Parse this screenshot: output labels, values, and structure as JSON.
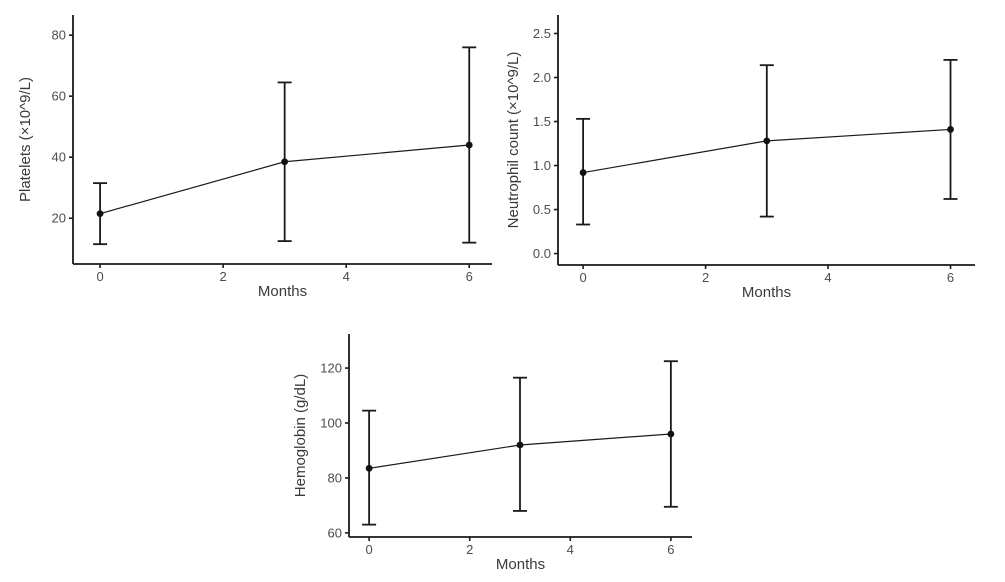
{
  "figure": {
    "background": "#ffffff",
    "axis_color": "#1a1a1a",
    "tick_label_color": "#4d4d4d",
    "axis_title_color": "#3a3a3a",
    "marker_color": "#111111",
    "line_color": "#1a1a1a"
  },
  "chart_data": [
    {
      "id": "platelets",
      "type": "line",
      "title": "",
      "xlabel": "Months",
      "ylabel": "Platelets (×10^9/L)",
      "x": [
        0,
        3,
        6
      ],
      "series": [
        {
          "name": "Platelets",
          "values": [
            21.5,
            38.5,
            44
          ],
          "error_low": [
            11.5,
            12.5,
            12
          ],
          "error_high": [
            31.5,
            64.5,
            76
          ]
        }
      ],
      "xticks": [
        0,
        2,
        4,
        6
      ],
      "xtick_labels": [
        "0",
        "2",
        "4",
        "6"
      ],
      "yticks": [
        20,
        40,
        60,
        80
      ],
      "ytick_labels": [
        "20",
        "40",
        "60",
        "80"
      ],
      "xlim": [
        -0.44,
        6.37
      ],
      "ylim": [
        5.0,
        86.6
      ],
      "grid": false,
      "legend": "none",
      "error_bars": true,
      "marker": "circle"
    },
    {
      "id": "neutrophil-count",
      "type": "line",
      "title": "",
      "xlabel": "Months",
      "ylabel": "Neutrophil count (×10^9/L)",
      "x": [
        0,
        3,
        6
      ],
      "series": [
        {
          "name": "Neutrophil count",
          "values": [
            0.92,
            1.28,
            1.41
          ],
          "error_low": [
            0.33,
            0.42,
            0.62
          ],
          "error_high": [
            1.53,
            2.14,
            2.2
          ]
        }
      ],
      "xticks": [
        0,
        2,
        4,
        6
      ],
      "xtick_labels": [
        "0",
        "2",
        "4",
        "6"
      ],
      "yticks": [
        0,
        0.5,
        1.0,
        1.5,
        2.0,
        2.5
      ],
      "ytick_labels": [
        "0.0",
        "0.5",
        "1.0",
        "1.5",
        "2.0",
        "2.5"
      ],
      "xlim": [
        -0.41,
        6.4
      ],
      "ylim": [
        -0.13,
        2.71
      ],
      "grid": false,
      "legend": "none",
      "error_bars": true,
      "marker": "circle"
    },
    {
      "id": "hemoglobin",
      "type": "line",
      "title": "",
      "xlabel": "Months",
      "ylabel": "Hemoglobin (g/dL)",
      "x": [
        0,
        3,
        6
      ],
      "series": [
        {
          "name": "Hemoglobin",
          "values": [
            83.5,
            92,
            96
          ],
          "error_low": [
            63,
            68,
            69.5
          ],
          "error_high": [
            104.5,
            116.5,
            122.5
          ]
        }
      ],
      "xticks": [
        0,
        2,
        4,
        6
      ],
      "xtick_labels": [
        "0",
        "2",
        "4",
        "6"
      ],
      "yticks": [
        60,
        80,
        100,
        120
      ],
      "ytick_labels": [
        "60",
        "80",
        "100",
        "120"
      ],
      "xlim": [
        -0.4,
        6.42
      ],
      "ylim": [
        58.5,
        132.4
      ],
      "grid": false,
      "legend": "none",
      "error_bars": true,
      "marker": "circle"
    }
  ]
}
